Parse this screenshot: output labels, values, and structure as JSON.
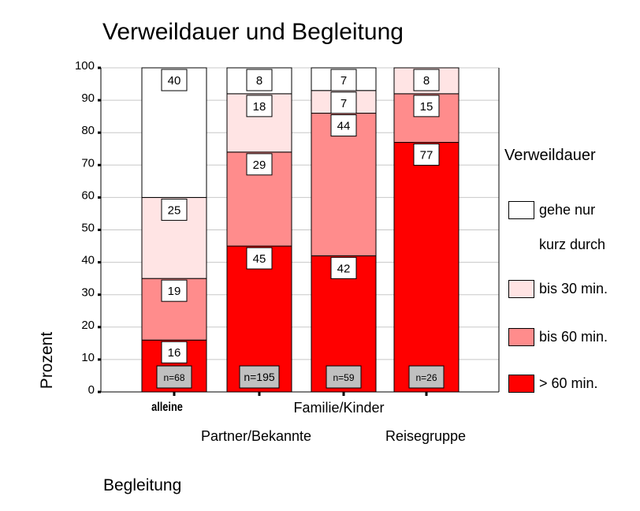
{
  "chart_data": {
    "type": "bar",
    "stacked": true,
    "title": "Verweildauer und Begleitung",
    "xlabel": "Begleitung",
    "ylabel": "Prozent",
    "ylim": [
      0,
      100
    ],
    "yticks": [
      0,
      10,
      20,
      30,
      40,
      50,
      60,
      70,
      80,
      90,
      100
    ],
    "grid": true,
    "categories": [
      "alleine",
      "Partner/Bekannte",
      "Familie/Kinder",
      "Reisegruppe"
    ],
    "sample_sizes": [
      "n=68",
      "n=195",
      "n=59",
      "n=26"
    ],
    "legend_title": "Verweildauer",
    "legend_position": "right",
    "series": [
      {
        "name": "> 60 min.",
        "color": "#ff0000",
        "values": [
          16,
          45,
          42,
          77
        ]
      },
      {
        "name": "bis 60 min.",
        "color": "#ff8c8c",
        "values": [
          19,
          29,
          44,
          15
        ]
      },
      {
        "name": "bis 30 min.",
        "color": "#ffe4e4",
        "values": [
          25,
          18,
          7,
          8
        ]
      },
      {
        "name": "gehe nur kurz durch",
        "color": "#ffffff",
        "values": [
          40,
          8,
          7,
          0
        ]
      }
    ]
  }
}
